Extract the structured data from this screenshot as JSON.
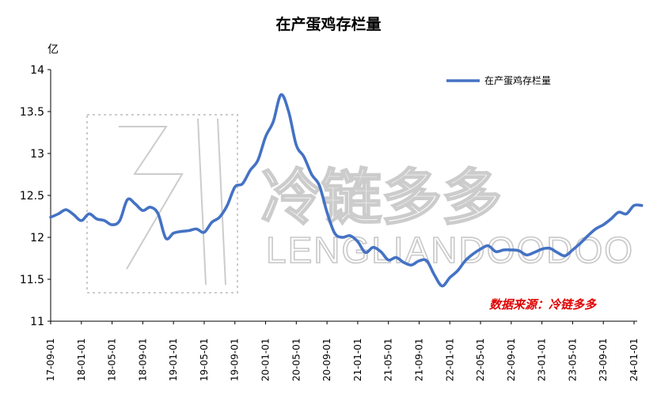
{
  "title": "在产蛋鸡存栏量",
  "unit": "亿",
  "source": "数据来源：冷链多多",
  "watermark": {
    "cn": "冷链多多",
    "en": "LENGLIANDOODOO"
  },
  "chart_data": {
    "type": "line",
    "title": "在产蛋鸡存栏量",
    "ylabel": "亿",
    "ylim": [
      11,
      14
    ],
    "yticks": [
      11,
      11.5,
      12,
      12.5,
      13,
      13.5,
      14
    ],
    "xticks": [
      "17-09-01",
      "18-01-01",
      "18-05-01",
      "18-09-01",
      "19-01-01",
      "19-05-01",
      "19-09-01",
      "20-01-01",
      "20-05-01",
      "20-09-01",
      "21-01-01",
      "21-05-01",
      "21-09-01",
      "22-01-01",
      "22-05-01",
      "22-09-01",
      "23-01-01",
      "23-05-01",
      "23-09-01",
      "24-01-01"
    ],
    "grid": false,
    "legend": "top-right",
    "colors": {
      "series": "#4472c4"
    },
    "series": [
      {
        "name": "在产蛋鸡存栏量",
        "x": [
          "17-09",
          "17-10",
          "17-11",
          "17-12",
          "18-01",
          "18-02",
          "18-03",
          "18-04",
          "18-05",
          "18-06",
          "18-07",
          "18-08",
          "18-09",
          "18-10",
          "18-11",
          "18-12",
          "19-01",
          "19-02",
          "19-03",
          "19-04",
          "19-05",
          "19-06",
          "19-07",
          "19-08",
          "19-09",
          "19-10",
          "19-11",
          "19-12",
          "20-01",
          "20-02",
          "20-03",
          "20-04",
          "20-05",
          "20-06",
          "20-07",
          "20-08",
          "20-09",
          "20-10",
          "20-11",
          "20-12",
          "21-01",
          "21-02",
          "21-03",
          "21-04",
          "21-05",
          "21-06",
          "21-07",
          "21-08",
          "21-09",
          "21-10",
          "21-11",
          "21-12",
          "22-01",
          "22-02",
          "22-03",
          "22-04",
          "22-05",
          "22-06",
          "22-07",
          "22-08",
          "22-09",
          "22-10",
          "22-11",
          "22-12",
          "23-01",
          "23-02",
          "23-03",
          "23-04",
          "23-05",
          "23-06",
          "23-07",
          "23-08",
          "23-09",
          "23-10",
          "23-11",
          "23-12",
          "24-01",
          "24-02"
        ],
        "values": [
          12.24,
          12.28,
          12.33,
          12.27,
          12.2,
          12.28,
          12.22,
          12.2,
          12.15,
          12.2,
          12.45,
          12.4,
          12.32,
          12.36,
          12.28,
          11.99,
          12.05,
          12.07,
          12.08,
          12.1,
          12.06,
          12.18,
          12.24,
          12.38,
          12.6,
          12.64,
          12.8,
          12.92,
          13.2,
          13.38,
          13.7,
          13.5,
          13.1,
          12.96,
          12.75,
          12.62,
          12.3,
          12.05,
          12.0,
          12.02,
          11.95,
          11.82,
          11.88,
          11.83,
          11.73,
          11.76,
          11.7,
          11.67,
          11.72,
          11.72,
          11.55,
          11.42,
          11.52,
          11.6,
          11.72,
          11.8,
          11.86,
          11.9,
          11.83,
          11.85,
          11.85,
          11.84,
          11.79,
          11.82,
          11.86,
          11.87,
          11.82,
          11.78,
          11.85,
          11.93,
          12.02,
          12.1,
          12.15,
          12.22,
          12.3,
          12.28,
          12.38,
          12.38
        ]
      }
    ]
  }
}
